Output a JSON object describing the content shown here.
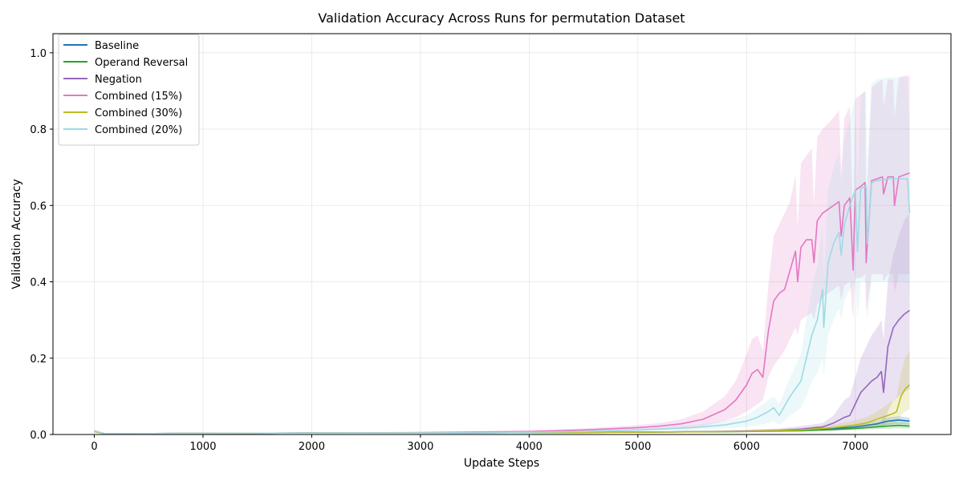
{
  "chart_data": {
    "type": "line",
    "title": "Validation Accuracy Across Runs for permutation Dataset",
    "xlabel": "Update Steps",
    "ylabel": "Validation Accuracy",
    "xlim": [
      -380,
      7880
    ],
    "ylim": [
      0,
      1.05
    ],
    "xticks": [
      0,
      1000,
      2000,
      3000,
      4000,
      5000,
      6000,
      7000
    ],
    "yticks": [
      0.0,
      0.2,
      0.4,
      0.6,
      0.8,
      1.0
    ],
    "xtick_labels": [
      "0",
      "1000",
      "2000",
      "3000",
      "4000",
      "5000",
      "6000",
      "7000"
    ],
    "ytick_labels": [
      "0.0",
      "0.2",
      "0.4",
      "0.6",
      "0.8",
      "1.0"
    ],
    "grid": true,
    "legend_position": "upper-left",
    "series": [
      {
        "name": "Baseline",
        "color": "#1f77b4",
        "x": [
          0,
          100,
          1000,
          2000,
          3000,
          4000,
          5000,
          6000,
          6500,
          6800,
          7000,
          7200,
          7300,
          7400,
          7500
        ],
        "y": [
          0.008,
          0.002,
          0.003,
          0.004,
          0.004,
          0.005,
          0.006,
          0.008,
          0.012,
          0.016,
          0.02,
          0.028,
          0.035,
          0.038,
          0.035
        ],
        "lower": [
          0.006,
          0.001,
          0.002,
          0.003,
          0.003,
          0.004,
          0.005,
          0.006,
          0.009,
          0.012,
          0.015,
          0.02,
          0.025,
          0.028,
          0.026
        ],
        "upper": [
          0.01,
          0.003,
          0.004,
          0.005,
          0.005,
          0.006,
          0.007,
          0.01,
          0.015,
          0.02,
          0.026,
          0.036,
          0.045,
          0.048,
          0.044
        ]
      },
      {
        "name": "Operand Reversal",
        "color": "#2ca02c",
        "x": [
          0,
          100,
          1000,
          2000,
          3000,
          4000,
          5000,
          6000,
          6500,
          6800,
          7000,
          7200,
          7300,
          7400,
          7500
        ],
        "y": [
          0.008,
          0.002,
          0.003,
          0.004,
          0.004,
          0.005,
          0.006,
          0.008,
          0.01,
          0.013,
          0.016,
          0.02,
          0.022,
          0.024,
          0.022
        ],
        "lower": [
          0.006,
          0.001,
          0.002,
          0.003,
          0.003,
          0.004,
          0.005,
          0.006,
          0.008,
          0.01,
          0.012,
          0.014,
          0.015,
          0.016,
          0.015
        ],
        "upper": [
          0.01,
          0.003,
          0.004,
          0.005,
          0.005,
          0.006,
          0.007,
          0.01,
          0.012,
          0.016,
          0.02,
          0.026,
          0.03,
          0.032,
          0.03
        ]
      },
      {
        "name": "Negation",
        "color": "#9467bd",
        "x": [
          0,
          100,
          1000,
          2000,
          3000,
          4000,
          5000,
          5500,
          6000,
          6300,
          6500,
          6700,
          6800,
          6900,
          6950,
          7000,
          7050,
          7100,
          7150,
          7200,
          7240,
          7260,
          7300,
          7350,
          7400,
          7450,
          7500
        ],
        "y": [
          0.008,
          0.002,
          0.003,
          0.004,
          0.004,
          0.005,
          0.006,
          0.007,
          0.009,
          0.011,
          0.014,
          0.02,
          0.03,
          0.045,
          0.05,
          0.08,
          0.11,
          0.125,
          0.14,
          0.15,
          0.165,
          0.11,
          0.23,
          0.28,
          0.3,
          0.315,
          0.325
        ],
        "lower": [
          0.006,
          0.001,
          0.002,
          0.003,
          0.003,
          0.004,
          0.005,
          0.005,
          0.006,
          0.007,
          0.008,
          0.01,
          0.012,
          0.015,
          0.016,
          0.02,
          0.025,
          0.03,
          0.035,
          0.04,
          0.045,
          0.02,
          0.06,
          0.09,
          0.1,
          0.11,
          0.12
        ],
        "upper": [
          0.01,
          0.003,
          0.004,
          0.005,
          0.005,
          0.006,
          0.008,
          0.009,
          0.012,
          0.016,
          0.022,
          0.03,
          0.05,
          0.09,
          0.1,
          0.15,
          0.2,
          0.23,
          0.26,
          0.28,
          0.3,
          0.25,
          0.4,
          0.47,
          0.52,
          0.56,
          0.58
        ]
      },
      {
        "name": "Combined (15%)",
        "color": "#e377c2",
        "x": [
          0,
          100,
          1000,
          2000,
          3000,
          4000,
          4500,
          5000,
          5200,
          5400,
          5600,
          5800,
          5900,
          6000,
          6050,
          6100,
          6150,
          6200,
          6250,
          6300,
          6350,
          6400,
          6450,
          6470,
          6500,
          6550,
          6600,
          6620,
          6650,
          6700,
          6800,
          6850,
          6870,
          6900,
          6950,
          6980,
          7000,
          7050,
          7090,
          7100,
          7150,
          7200,
          7250,
          7260,
          7300,
          7350,
          7360,
          7400,
          7450,
          7500
        ],
        "y": [
          0.008,
          0.002,
          0.003,
          0.004,
          0.005,
          0.008,
          0.012,
          0.018,
          0.022,
          0.028,
          0.04,
          0.065,
          0.09,
          0.13,
          0.16,
          0.17,
          0.15,
          0.27,
          0.35,
          0.37,
          0.38,
          0.43,
          0.48,
          0.4,
          0.49,
          0.51,
          0.51,
          0.45,
          0.56,
          0.58,
          0.6,
          0.61,
          0.52,
          0.6,
          0.62,
          0.43,
          0.64,
          0.65,
          0.66,
          0.45,
          0.665,
          0.67,
          0.675,
          0.63,
          0.675,
          0.675,
          0.6,
          0.675,
          0.68,
          0.685
        ],
        "lower": [
          0.006,
          0.001,
          0.002,
          0.003,
          0.004,
          0.006,
          0.008,
          0.012,
          0.014,
          0.017,
          0.022,
          0.035,
          0.045,
          0.06,
          0.07,
          0.08,
          0.09,
          0.15,
          0.18,
          0.2,
          0.22,
          0.25,
          0.28,
          0.26,
          0.3,
          0.31,
          0.32,
          0.3,
          0.34,
          0.36,
          0.38,
          0.39,
          0.35,
          0.39,
          0.4,
          0.3,
          0.41,
          0.41,
          0.42,
          0.32,
          0.42,
          0.42,
          0.42,
          0.4,
          0.42,
          0.42,
          0.37,
          0.42,
          0.42,
          0.42
        ],
        "upper": [
          0.01,
          0.003,
          0.004,
          0.005,
          0.006,
          0.01,
          0.016,
          0.025,
          0.03,
          0.04,
          0.06,
          0.1,
          0.14,
          0.21,
          0.25,
          0.26,
          0.22,
          0.39,
          0.52,
          0.55,
          0.58,
          0.61,
          0.68,
          0.54,
          0.71,
          0.73,
          0.75,
          0.6,
          0.78,
          0.8,
          0.83,
          0.85,
          0.69,
          0.83,
          0.86,
          0.56,
          0.88,
          0.89,
          0.9,
          0.58,
          0.91,
          0.92,
          0.93,
          0.86,
          0.93,
          0.93,
          0.83,
          0.935,
          0.94,
          0.94
        ]
      },
      {
        "name": "Combined (30%)",
        "color": "#bcbd22",
        "x": [
          0,
          100,
          1000,
          2000,
          3000,
          4000,
          5000,
          6000,
          6500,
          6800,
          7000,
          7100,
          7200,
          7300,
          7350,
          7380,
          7420,
          7460,
          7500
        ],
        "y": [
          0.008,
          0.002,
          0.003,
          0.004,
          0.004,
          0.005,
          0.006,
          0.008,
          0.012,
          0.018,
          0.025,
          0.03,
          0.04,
          0.05,
          0.055,
          0.06,
          0.1,
          0.12,
          0.13
        ],
        "lower": [
          0.006,
          0.001,
          0.002,
          0.003,
          0.003,
          0.004,
          0.005,
          0.006,
          0.008,
          0.011,
          0.014,
          0.016,
          0.02,
          0.025,
          0.03,
          0.032,
          0.05,
          0.06,
          0.065
        ],
        "upper": [
          0.01,
          0.003,
          0.004,
          0.005,
          0.005,
          0.006,
          0.008,
          0.011,
          0.017,
          0.026,
          0.037,
          0.045,
          0.06,
          0.08,
          0.09,
          0.1,
          0.16,
          0.2,
          0.22
        ]
      },
      {
        "name": "Combined (20%)",
        "color": "#9edae5",
        "x": [
          0,
          100,
          1000,
          2000,
          3000,
          4000,
          4500,
          5000,
          5500,
          5800,
          6000,
          6100,
          6200,
          6250,
          6300,
          6400,
          6500,
          6550,
          6600,
          6650,
          6700,
          6710,
          6750,
          6800,
          6850,
          6870,
          6900,
          6950,
          7000,
          7020,
          7050,
          7100,
          7110,
          7150,
          7200,
          7300,
          7400,
          7480,
          7500
        ],
        "y": [
          0.01,
          0.002,
          0.003,
          0.004,
          0.004,
          0.006,
          0.008,
          0.012,
          0.018,
          0.025,
          0.035,
          0.045,
          0.06,
          0.07,
          0.05,
          0.1,
          0.14,
          0.2,
          0.26,
          0.3,
          0.38,
          0.28,
          0.45,
          0.5,
          0.53,
          0.47,
          0.55,
          0.6,
          0.64,
          0.48,
          0.645,
          0.65,
          0.5,
          0.66,
          0.665,
          0.67,
          0.67,
          0.67,
          0.58
        ],
        "lower": [
          0.008,
          0.001,
          0.002,
          0.003,
          0.003,
          0.004,
          0.006,
          0.008,
          0.012,
          0.016,
          0.02,
          0.024,
          0.03,
          0.035,
          0.025,
          0.05,
          0.07,
          0.1,
          0.14,
          0.16,
          0.2,
          0.15,
          0.26,
          0.3,
          0.33,
          0.3,
          0.35,
          0.38,
          0.4,
          0.3,
          0.4,
          0.4,
          0.3,
          0.4,
          0.4,
          0.4,
          0.4,
          0.4,
          0.36
        ],
        "upper": [
          0.012,
          0.003,
          0.004,
          0.005,
          0.005,
          0.008,
          0.011,
          0.016,
          0.025,
          0.035,
          0.05,
          0.07,
          0.09,
          0.1,
          0.08,
          0.15,
          0.21,
          0.3,
          0.38,
          0.44,
          0.55,
          0.41,
          0.64,
          0.7,
          0.74,
          0.66,
          0.77,
          0.83,
          0.88,
          0.66,
          0.89,
          0.9,
          0.7,
          0.92,
          0.93,
          0.935,
          0.935,
          0.935,
          0.8
        ]
      }
    ]
  }
}
